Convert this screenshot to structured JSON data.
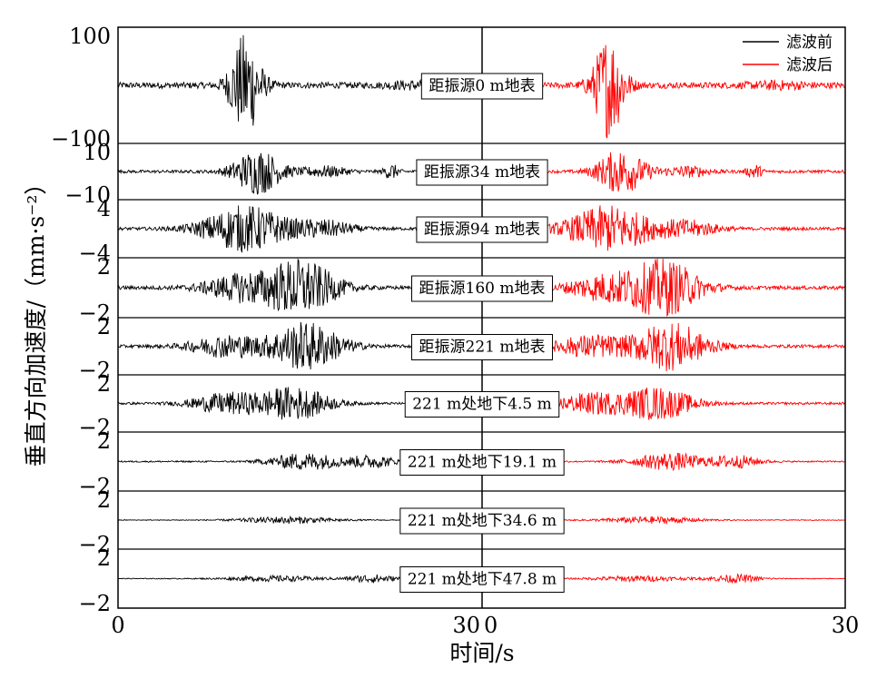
{
  "chart_data": {
    "type": "line",
    "xlabel": "时间/s",
    "ylabel": "垂直方向加速度/（mm·s⁻²）",
    "left_x_ticks": [
      "0",
      "30"
    ],
    "right_x_ticks": [
      "0",
      "30"
    ],
    "xlim": [
      0,
      30
    ],
    "legend": {
      "placement": "top-right",
      "entries": [
        {
          "label": "滤波前",
          "color": "#000000"
        },
        {
          "label": "滤波后",
          "color": "#ff0000"
        }
      ]
    },
    "series": [
      {
        "name": "滤波前",
        "color": "#000000",
        "side": "left"
      },
      {
        "name": "滤波后",
        "color": "#ff0000",
        "side": "right"
      }
    ],
    "panels": [
      {
        "label": "距振源0 m地表",
        "ylim": [
          -100,
          100
        ],
        "y_ticks": [
          "100",
          "−100"
        ],
        "peak_before": 95,
        "peak_after": 95,
        "bursts": [
          {
            "t": 10.5,
            "amp": 1.0,
            "w": 1.3
          },
          {
            "t": 24.5,
            "amp": 0.05,
            "w": 2.5
          }
        ]
      },
      {
        "label": "距振源34 m地表",
        "ylim": [
          -10,
          10
        ],
        "y_ticks": [
          "10",
          "−10"
        ],
        "peak_before": 9.5,
        "peak_after": 9.5,
        "bursts": [
          {
            "t": 11.5,
            "amp": 0.9,
            "w": 2.0
          },
          {
            "t": 17,
            "amp": 0.2,
            "w": 2
          },
          {
            "t": 22.5,
            "amp": 0.3,
            "w": 0.6
          }
        ]
      },
      {
        "label": "距振源94 m地表",
        "ylim": [
          -4,
          4
        ],
        "y_ticks": [
          "4",
          "−4"
        ],
        "peak_before": 3.8,
        "peak_after": 3.8,
        "bursts": [
          {
            "t": 10.5,
            "amp": 0.9,
            "w": 3.5
          },
          {
            "t": 17,
            "amp": 0.3,
            "w": 2.5
          }
        ]
      },
      {
        "label": "距振源160 m地表",
        "ylim": [
          -2,
          2
        ],
        "y_ticks": [
          "2",
          "−2"
        ],
        "peak_before": 2.2,
        "peak_after": 2.2,
        "bursts": [
          {
            "t": 15,
            "amp": 0.9,
            "w": 3
          },
          {
            "t": 10,
            "amp": 0.4,
            "w": 3
          }
        ]
      },
      {
        "label": "距振源221 m地表",
        "ylim": [
          -2,
          2
        ],
        "y_ticks": [
          "2",
          "−2"
        ],
        "peak_before": 2.0,
        "peak_after": 2.0,
        "bursts": [
          {
            "t": 15.5,
            "amp": 0.9,
            "w": 3
          },
          {
            "t": 9,
            "amp": 0.4,
            "w": 3
          }
        ]
      },
      {
        "label": "221 m处地下4.5 m",
        "ylim": [
          -2,
          2
        ],
        "y_ticks": [
          "2",
          "−2"
        ],
        "peak_before": 1.5,
        "peak_after": 1.5,
        "bursts": [
          {
            "t": 14.5,
            "amp": 0.8,
            "w": 3
          },
          {
            "t": 9,
            "amp": 0.5,
            "w": 3
          }
        ]
      },
      {
        "label": "221 m处地下19.1 m",
        "ylim": [
          -2,
          2
        ],
        "y_ticks": [
          "2",
          "−2"
        ],
        "peak_before": 0.9,
        "peak_after": 0.9,
        "bursts": [
          {
            "t": 15.5,
            "amp": 0.7,
            "w": 3
          },
          {
            "t": 21,
            "amp": 0.5,
            "w": 2
          }
        ]
      },
      {
        "label": "221 m处地下34.6 m",
        "ylim": [
          -2,
          2
        ],
        "y_ticks": [
          "2",
          "−2"
        ],
        "peak_before": 0.5,
        "peak_after": 0.5,
        "bursts": [
          {
            "t": 14,
            "amp": 0.5,
            "w": 4
          }
        ]
      },
      {
        "label": "221 m处地下47.8 m",
        "ylim": [
          -2,
          2
        ],
        "y_ticks": [
          "2",
          "−2"
        ],
        "peak_before": 0.5,
        "peak_after": 0.5,
        "bursts": [
          {
            "t": 21,
            "amp": 0.6,
            "w": 2
          },
          {
            "t": 13,
            "amp": 0.4,
            "w": 4
          }
        ]
      }
    ]
  }
}
